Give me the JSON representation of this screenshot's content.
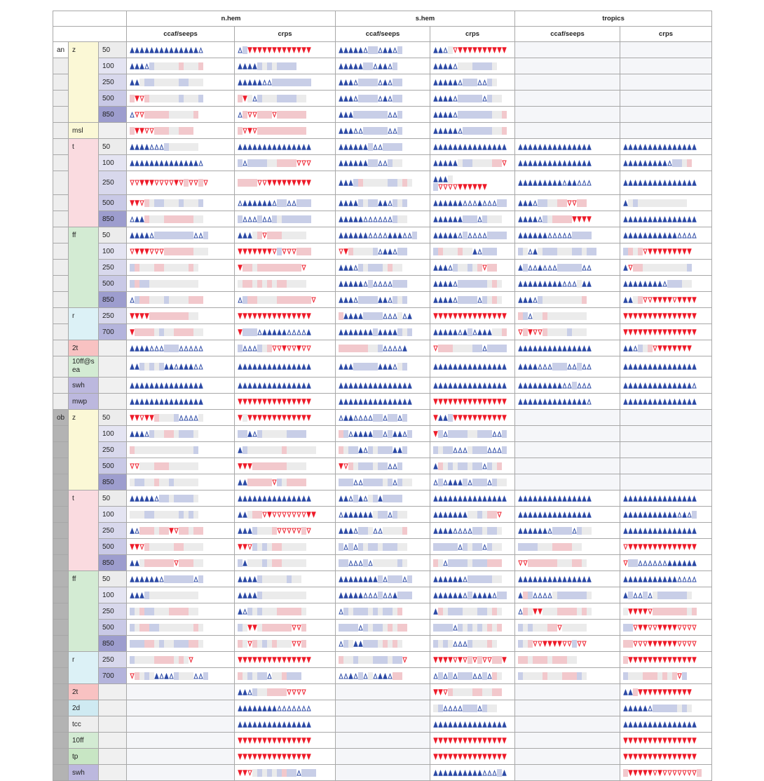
{
  "header": {
    "regions": [
      "n.hem",
      "s.hem",
      "tropics"
    ],
    "scores": [
      "ccaf/seeps",
      "crps"
    ]
  },
  "symbols": {
    "A": "filled-up-triangle-icon",
    "a": "open-up-triangle-icon",
    "V": "filled-down-triangle-icon",
    "v": "open-down-triangle-icon",
    "B": "blue-dotted-box-icon",
    "R": "red-dotted-box-icon",
    "g": "gray-box-icon"
  },
  "colors": {
    "better": "#2c4aa5",
    "worse": "#ee1c2a",
    "group_an": "#eeeeee",
    "group_ob": "#b3b3b3"
  },
  "var_colors": {
    "z": "#fbf8d6",
    "msl": "#fbf8d6",
    "t": "#fadbe0",
    "ff": "#d3ebd3",
    "r": "#dcf1f6",
    "2t": "#f8c2c2",
    "10ff@sea": "#d3ebd3",
    "swh": "#bcb8de",
    "mwp": "#bcb8de",
    "2d": "#cfeaf2",
    "tcc": "#eeeeee",
    "10ff": "#d3ebd3",
    "tp": "#c8e6c4"
  },
  "level_colors": {
    "50": "#ececec",
    "100": "#e4e4f2",
    "250": "#d8d8ec",
    "500": "#c9c9e6",
    "700": "#b4b4dc",
    "850": "#9d9dce",
    "": "#f0f0f0"
  },
  "rows": [
    {
      "group": "an",
      "var": "z",
      "level": "50",
      "cells": [
        "AAAAAAAAAAAAAAa",
        "aBVVVVVVVVVVVVV",
        "AAAAAaBBaAAaB",
        "AAagvVVVVVVVVVV",
        "",
        ""
      ]
    },
    {
      "group": "",
      "var": "",
      "level": "100",
      "cells": [
        "AAAaBgggggRgggR",
        "AAAABgBgBBBB",
        "AAAAABBaAAaB",
        "AAAAagggBBBBg",
        "",
        ""
      ]
    },
    {
      "group": "",
      "var": "",
      "level": "250",
      "cells": [
        "AAgBBgggggBBggg",
        "AAAAAaaBBBBBBBB",
        "AAAaBBBBaAaBB",
        "AAAAAaBBBaaBg",
        "",
        ""
      ]
    },
    {
      "group": "",
      "var": "",
      "level": "500",
      "cells": [
        "RVvRggggggBgggB",
        "RVgaBgggBBBBgg",
        "AAAaBBBBaAaBB",
        "AAAAaBBBBBaBgg",
        "",
        ""
      ]
    },
    {
      "group": "",
      "var": "",
      "level": "850",
      "cells": [
        "avvRRRRRgggggR",
        "aRvvRRRvRRRRRR",
        "AAABBBBBBBaaB",
        "AAAAaBBBBBBBggR",
        "",
        ""
      ]
    },
    {
      "group": "",
      "var": "msl",
      "level": "",
      "cells": [
        "RVVvvRRRggRRR",
        "RvVvRRRRRRRRRR",
        "AAAaaBBBBBaaB",
        "AAAAAaBBBBBBggR",
        "",
        ""
      ]
    },
    {
      "group": "",
      "var": "t",
      "level": "50",
      "cells": [
        "AAAAaaaBgggggg",
        "AAAAAAAAAAAAAAA",
        "AAAAAABaaBBBB",
        "AAAAAAAAAAAAAAA",
        "AAAAAAAAAAAAAAA",
        "AAAAAAAAAAAAAAA"
      ]
    },
    {
      "group": "",
      "var": "",
      "level": "100",
      "cells": [
        "AAAAAAAAAAAAAAa",
        "BaBBBBggRRRRvvv",
        "AAAAAABBaaBgg",
        "AAAAAgBBggggRRv",
        "AAAAAAAAAAAAAAA",
        "AAAAAAAAAaBBgR"
      ]
    },
    {
      "group": "",
      "var": "",
      "level": "250",
      "cells": [
        "vvVVVvvvvVvRvvRv",
        "RRRRvvVVVVVVVVV",
        "AAABRgggggBBgRg",
        "AAAg|BvvvvVVVVVV",
        "AAAAAAAAAaAAaaa",
        "AAAAAAAAAAAAAAA"
      ]
    },
    {
      "group": "",
      "var": "",
      "level": "500",
      "cells": [
        "VVvRgBBgggBgggB",
        "aAAAAAAaBBaaBBB",
        "AAAABgBBAAaBgB",
        "AAAAAAaaaAaaaBB",
        "AAAaBBggRRvvRR",
        "AgBgggggggggg"
      ]
    },
    {
      "group": "",
      "var": "",
      "level": "850",
      "cells": [
        "aAARgggRRRRRRgg",
        "BaaaBaaBgBBBBBB",
        "AAAAAaaaaaaBgg",
        "AAAAAABBBaBggg",
        "AAAAaBgRRRRVVVV",
        "AAAAAAAAAAAAAAA"
      ]
    },
    {
      "group": "",
      "var": "ff",
      "level": "50",
      "cells": [
        "AAAAaBBBBBBBBaaB",
        "AAAgRvRRRggggg",
        "AAAAAAaaaaAAAaaB",
        "AAAAAaBaaaaBBBB",
        "AAAAAAaaaaaBBBB",
        "AAAAAAAAAAAaaaa"
      ]
    },
    {
      "group": "",
      "var": "",
      "level": "100",
      "cells": [
        "vVVVvvvRRRRRRggg",
        "VVVVVVVvBvvvRRR",
        "vVRggggBaAAaBB",
        "BRgggRggAaBBB",
        "BgaAgBBBgggBBgBB",
        "BRgRvVVVVVVVVV"
      ]
    },
    {
      "group": "",
      "var": "",
      "level": "250",
      "cells": [
        "BRgggRRgggggRg",
        "VRRgRRRRRRRRRv",
        "AAAaBgBBBgRgg",
        "AAAaBggBgRvRR",
        "ABaaAaaaBBBBBaa",
        "AvRRgggggggggB"
      ]
    },
    {
      "group": "",
      "var": "",
      "level": "500",
      "cells": [
        "BRBBgggggggggg",
        "gRRgRgRgRRgggg",
        "AAAAAaBaaaaBBB",
        "AAAAaBBBBBBgRg",
        "AAAAAAAAAaaagAA",
        "AAAAAAAAaBBBgg"
      ]
    },
    {
      "group": "",
      "var": "",
      "level": "850",
      "cells": [
        "aBRRgggBggggRRR",
        "aBRRggggRRRRRRRv",
        "AAAaBBBBAAaBgB",
        "AAAAaBBBBaBgRg",
        "AAAaBggggggggR",
        "AAgRvvVVVVvVVVV"
      ]
    },
    {
      "group": "",
      "var": "r",
      "level": "250",
      "cells": [
        "VVVVRRRRRRRRgg",
        "VVVVVVVVVVVVVVV",
        "RAAAABBBBaaagaA",
        "VVVVVVVVVVVVVVV",
        "RBaggRgggggggg",
        "VVVVVVVVVVVVVVV"
      ]
    },
    {
      "group": "",
      "var": "",
      "level": "700",
      "cells": [
        "VRRRRgBggRRRRgg",
        "VBBBaAAAAAaaaaA",
        "AAAAAAABAAAABgB",
        "AAAAAaABaAAAggR",
        "vRVvvRggggBggg",
        "VVVVVVVVVVVVVVV"
      ]
    },
    {
      "group": "",
      "var": "2t",
      "level": "",
      "cells": [
        "AAAAaaaBBBaaaaa",
        "BaaaBgRvvVvvVvv",
        "RRRRRRggBaaaaA",
        "vRRRggggBBaBBBB",
        "AAAAAAAAAAAAAAA",
        "AAaBgRvVVVVVVV"
      ]
    },
    {
      "group": "",
      "var": "10ff@sea",
      "level": "",
      "cells": [
        "AABgBgBAAaAAAaa",
        "AAAAAAAAAAAAAAA",
        "AAABBBBBAAAagB",
        "AAAAAAAAAAAAAAA",
        "AAAAaaaBBBaaBaa",
        "AAAAAAAAAAAAAAA"
      ]
    },
    {
      "group": "",
      "var": "swh",
      "level": "",
      "cells": [
        "AAAAAAAAAAAAAAA",
        "AAAAAAAAAAAAAAA",
        "AAAAAAAAAAAAAAA",
        "AAAAAAAAAAAAAAA",
        "AAAAAAAAAaaBaaa",
        "AAAAAAAAAAAAAAa"
      ]
    },
    {
      "group": "",
      "var": "mwp",
      "level": "",
      "cells": [
        "AAAAAAAAAAAAAAA",
        "VVVVVVVVVVVVVVV",
        "AAAAAAAAAAAAAAA",
        "VVVVVVVVVVVVVVV",
        "AAAAAAAAAAAAAAa",
        "AAAAAAAAAAAAAAA"
      ]
    },
    {
      "group": "ob",
      "var": "z",
      "level": "50",
      "cells": [
        "VVvVVRgggBaaaag",
        "VgVVVVVVVVVVVVV",
        "aAAaaaaBBaBBaB",
        "VAABVVVVVVVVVVV",
        "",
        ""
      ]
    },
    {
      "group": "",
      "var": "",
      "level": "100",
      "cells": [
        "AAAaBggRRgBBBg",
        "BBAaBgggggBBBB",
        "RBaAAAABBaBAAaB",
        "VBaBBBBggBBBaaB",
        "",
        ""
      ]
    },
    {
      "group": "",
      "var": "",
      "level": "250",
      "cells": [
        "RggggggggggggB",
        "ABgggggggRgggggg",
        "RgBBAaBgBBBAAB",
        "BgBBaaagBBBaaaB",
        "",
        ""
      ]
    },
    {
      "group": "",
      "var": "",
      "level": "500",
      "cells": [
        "vvgggRRRgggggg",
        "VVVRRRRRRRgggg",
        "VvRgBBBgBBaaB",
        "ARgBgBBgBBaBgR",
        "",
        ""
      ]
    },
    {
      "group": "",
      "var": "",
      "level": "850",
      "cells": [
        "gBBggRggBggggg",
        "AARRRRRvBgRRRR",
        "BBBaaBBBBgBaBgg",
        "aBaAAABaBBBaBgg",
        "",
        ""
      ]
    },
    {
      "group": "",
      "var": "t",
      "level": "50",
      "cells": [
        "AAAAAaBBgBBBBg",
        "AAAAAAAAAAAAAAA",
        "AAaBAagBABBBB",
        "AAAAAAAAAAAAAAA",
        "AAAAAAAAAAAAAAA",
        "AAAAAAAAAAAAAAA"
      ]
    },
    {
      "group": "",
      "var": "",
      "level": "100",
      "cells": [
        "gggBBgggggBgBg",
        "AAgRRvVvvvvvvvVV",
        "aAAAAAAgBBaBgg",
        "AAAAAAAggBgRRv",
        "AAAAAAAAAAAAAAA",
        "AAAAAAAAAAAaAaB"
      ]
    },
    {
      "group": "",
      "var": "",
      "level": "250",
      "cells": [
        "AaRRRgRRVvRRgRR",
        "AAABgggRvvvvvRv",
        "AAAaBBgaaggggR",
        "AAAAaaaaBBgBBg",
        "AAAAAAaBBBBaBgg",
        "AAAAAAAAAAAAAAA"
      ]
    },
    {
      "group": "",
      "var": "",
      "level": "500",
      "cells": [
        "VVvRgggggRRgggg",
        "VVvBgBgRRggggg",
        "BaBaBgBBgBBBgg",
        "BBBBBaBgBBaBgg",
        "BBBBgggRRRRgg",
        "vVVVVVVVVVVVVVV"
      ]
    },
    {
      "group": "",
      "var": "",
      "level": "850",
      "cells": [
        "AAgRRRRRRvRRRgg",
        "BAgggBgRRggggg",
        "BBaaaBagggggBg",
        "RgaBBBBgBBBRRR",
        "vvRRRRRRgggRRg",
        "vBBaaaaaaAAAAAA"
      ]
    },
    {
      "group": "",
      "var": "ff",
      "level": "50",
      "cells": [
        "AAAAAAaBBBBBBaB",
        "AAAABgggggBgg",
        "AAAAAAAABaBBBaB",
        "AAAAAAaBBBBBgg",
        "AAAAAAAAAAAAAAA",
        "AAAAAAAAAAAaaaa"
      ]
    },
    {
      "group": "",
      "var": "",
      "level": "100",
      "cells": [
        "AAABgggggggggg",
        "AAAABggggggggg",
        "AAAAAaaaBaaABBB",
        "AAAAAAaBAAAAaBB",
        "ARBaaaagBBBBBBg",
        "ABaaBagBBBBBBg"
      ]
    },
    {
      "group": "",
      "var": "",
      "level": "250",
      "cells": [
        "BgRBBgggRRRRgg",
        "AaBgBgggRRRRRg",
        "aBgBBBgBgBBgR",
        "ARgBBBgggBBgRg",
        "aRgVVgggRRRRgRg",
        "gVVVVvRRRRRRRgR"
      ]
    },
    {
      "group": "",
      "var": "",
      "level": "500",
      "cells": [
        "BgRRBBgggggggRg",
        "BgVVgRRRRRRvvR",
        "BBBBaBgBBgRgRR",
        "BBBBaBgBgBgRgR",
        "BgBgggRRvggggg",
        "BBvVVvvVVVVvvvv"
      ]
    },
    {
      "group": "",
      "var": "",
      "level": "850",
      "cells": [
        "BBBRRgBggBBBRRg",
        "RgvRgBgRgggvvR",
        "aBgAABBBgRgRg",
        "BgBgaaaBgggRg",
        "BgRvvVVVVvvBvv",
        "RRvvvVVVVVVvvvv"
      ]
    },
    {
      "group": "",
      "var": "r",
      "level": "250",
      "cells": [
        "BggggRRRRgRgv",
        "VVVVVVVVVVVVVVV",
        "RggBgggBBBgBBv",
        "VVVVvVvRvRvvRRV",
        "RRgRRRgRRRgg",
        "RVVVVVVVVVVVVVV"
      ]
    },
    {
      "group": "",
      "var": "",
      "level": "700",
      "cells": [
        "vRgBgAaAaBgggaaB",
        "RgBgBBaggRBBB",
        "aaAaBagaAAaRR",
        "aBaBaBBBaaBaRg",
        "BggggRgggRRRBg",
        "BgggRRRgRgRvB"
      ]
    },
    {
      "group": "",
      "var": "2t",
      "level": "",
      "cells": [
        "",
        "AAaBggRRRRvvvv",
        "",
        "VVvRggggRRggRR",
        "",
        "AARVVVVVVVVVVV"
      ]
    },
    {
      "group": "",
      "var": "2d",
      "level": "",
      "cells": [
        "",
        "AAAAAAAAaaaaaaa",
        "",
        "gBaaaaBBBaBgg",
        "",
        "AAAAAaBBBBBgBg"
      ]
    },
    {
      "group": "",
      "var": "tcc",
      "level": "",
      "cells": [
        "",
        "AAAAAAAAAAAAAAA",
        "",
        "AAAAAAAAAAAAAAA",
        "",
        "AAAAAAAAAAAAAAA"
      ]
    },
    {
      "group": "",
      "var": "10ff",
      "level": "",
      "cells": [
        "",
        "VVVVVVVVVVVVVVV",
        "",
        "VVVVVVVVVVVVVVV",
        "",
        "VVVVVVVVVVVVVVV"
      ]
    },
    {
      "group": "",
      "var": "tp",
      "level": "",
      "cells": [
        "",
        "VVVVVVVVVVVVVVV",
        "",
        "VVVVVVVVVVVVVVV",
        "",
        "VVVVVVVVVVVVVVV"
      ]
    },
    {
      "group": "",
      "var": "swh",
      "level": "",
      "cells": [
        "",
        "VVvgBgBgBRBBaBBB",
        "",
        "AAAAAAAAAAaaaBA",
        "",
        "RVVVVVvVvvvvvvvR"
      ]
    }
  ]
}
